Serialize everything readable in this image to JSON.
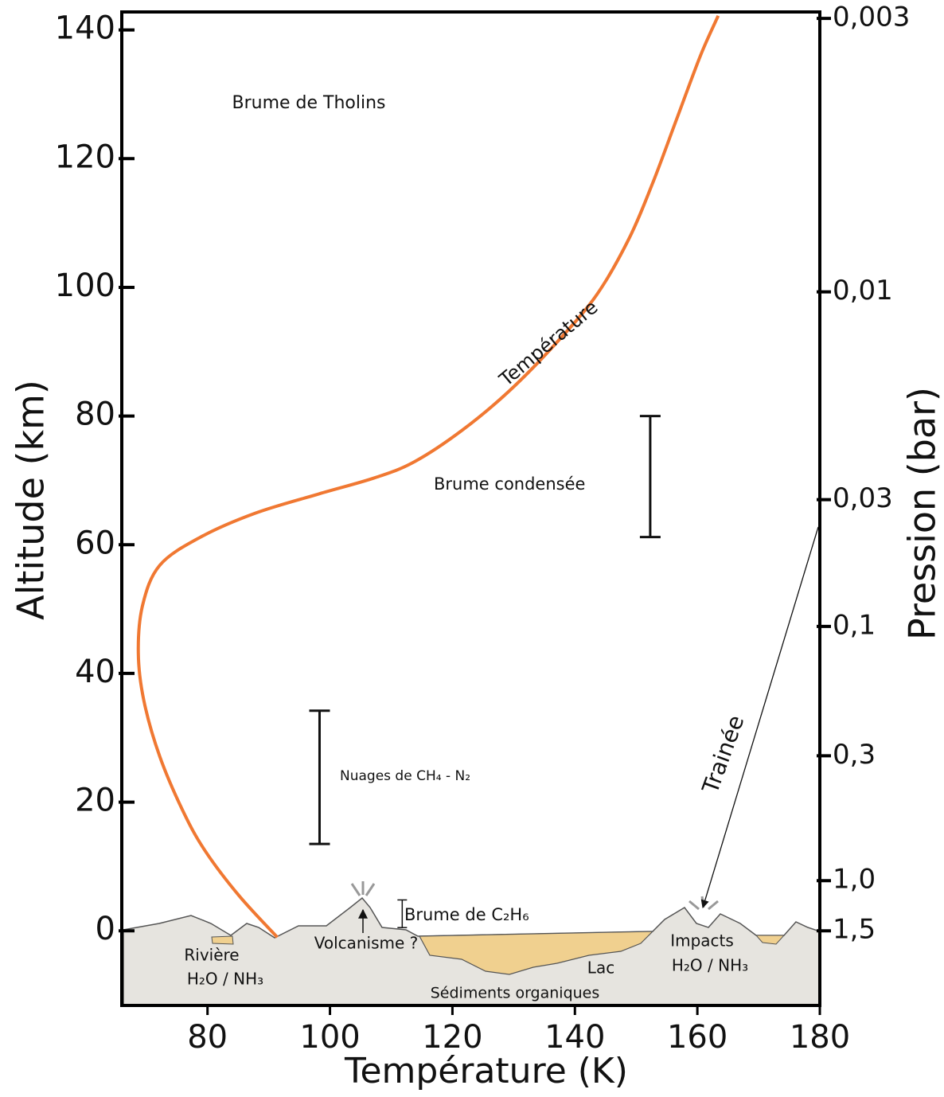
{
  "chart_data": {
    "type": "line",
    "x_label": "Température (K)",
    "y_label": "Altitude (km)",
    "y2_label": "Pression (bar)",
    "xlim": [
      66,
      180
    ],
    "ylim": [
      -11.6,
      142.8
    ],
    "xticks": [
      80,
      100,
      120,
      140,
      160,
      180
    ],
    "yticks": [
      0,
      20,
      40,
      60,
      80,
      100,
      120,
      140
    ],
    "series": [
      {
        "name": "Température",
        "color": "#f07832",
        "x": [
          91.4,
          85.2,
          79.7,
          76.1,
          72.2,
          69.6,
          68.7,
          69.4,
          72.2,
          78.7,
          87.8,
          98.2,
          107.3,
          113.8,
          121.6,
          129.4,
          137.1,
          143.6,
          148.8,
          152.7,
          156.6,
          160.5,
          163.4
        ],
        "values": [
          -1,
          5.4,
          12.3,
          18.4,
          27.1,
          35.8,
          43.2,
          50.6,
          56.8,
          61.1,
          64.9,
          67.9,
          70.4,
          72.9,
          77.8,
          84.0,
          91.5,
          98.9,
          107.5,
          116.2,
          126.1,
          136.0,
          142.2
        ]
      }
    ],
    "pressure_ticks": [
      {
        "pressure": 0.003,
        "label": "0,003",
        "altitude": 141.8
      },
      {
        "pressure": 0.01,
        "label": "0,01",
        "altitude": 99.3
      },
      {
        "pressure": 0.03,
        "label": "0,03",
        "altitude": 67.0
      },
      {
        "pressure": 0.1,
        "label": "0,1",
        "altitude": 47.3
      },
      {
        "pressure": 0.3,
        "label": "0,3",
        "altitude": 27.2
      },
      {
        "pressure": 1.0,
        "label": "1,0",
        "altitude": 7.8
      },
      {
        "pressure": 1.5,
        "label": "1,5",
        "altitude": 0
      }
    ],
    "ranges": [
      {
        "label": "Brume condensée",
        "x": 152.3,
        "low": 61.2,
        "high": 80.0
      },
      {
        "label": "Nuages de CH₄ - N₂",
        "x": 98.3,
        "low": 13.5,
        "high": 34.2
      },
      {
        "label": "Brume de C₂H₆",
        "x": 111.8,
        "low": 0.5,
        "high": 4.8
      }
    ],
    "annotations": [
      "Brume de Tholins",
      "Trainée",
      "Rivière",
      "H₂O / NH₃",
      "Volcanisme ?",
      "Lac",
      "Impacts",
      "H₂O / NH₃",
      "Sédiments organiques"
    ]
  }
}
